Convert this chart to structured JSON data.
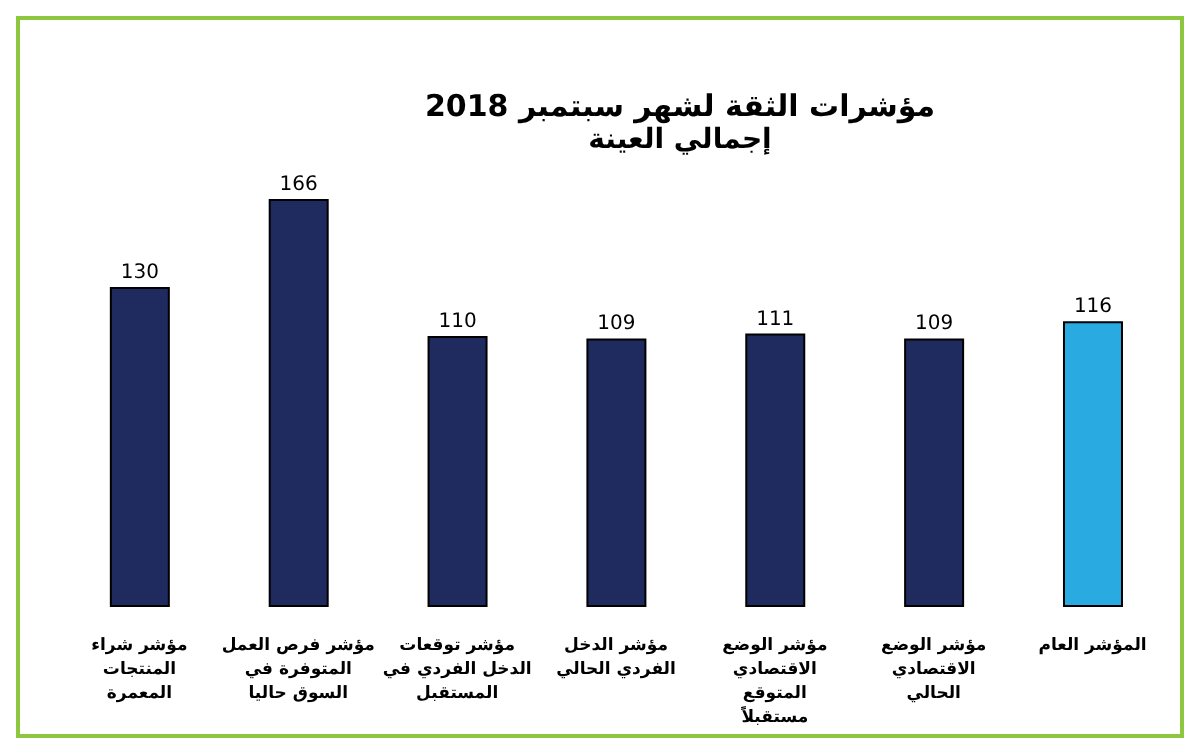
{
  "chart_data": {
    "type": "bar",
    "title": "مؤشرات الثقة لشهر سبتمبر 2018",
    "subtitle": "إجمالي العينة",
    "categories": [
      "مؤشر شراء المنتجات المعمرة",
      "مؤشر فرص العمل المتوفرة في السوق حاليا",
      "مؤشر توقعات الدخل الفردي في المستقبل",
      "مؤشر الدخل الفردي الحالي",
      "مؤشر الوضع الاقتصادي المتوقع مستقبلاً",
      "مؤشر الوضع الاقتصادي الحالي",
      "المؤشر العام"
    ],
    "values": [
      130,
      166,
      110,
      109,
      111,
      109,
      116
    ],
    "colors": [
      "#1f2a5e",
      "#1f2a5e",
      "#1f2a5e",
      "#1f2a5e",
      "#1f2a5e",
      "#1f2a5e",
      "#29abe2"
    ],
    "data_labels": true,
    "grid": false,
    "legend": false
  }
}
